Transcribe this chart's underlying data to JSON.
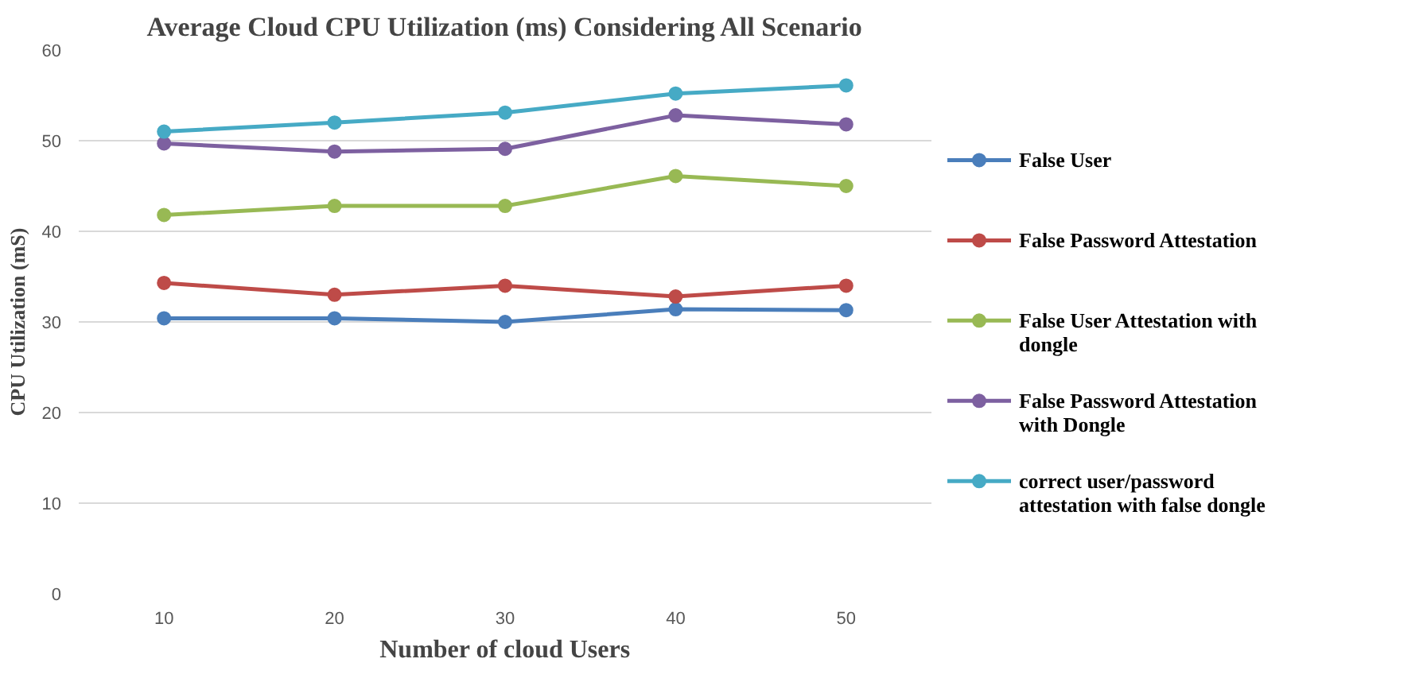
{
  "chart_data": {
    "type": "line",
    "title": "Average Cloud CPU Utilization (ms) Considering All Scenario",
    "xlabel": "Number of cloud Users",
    "ylabel": "CPU Utilization (mS)",
    "categories": [
      "10",
      "20",
      "30",
      "40",
      "50"
    ],
    "series": [
      {
        "name": "False User",
        "color": "#4a7ebb",
        "values": [
          30.4,
          30.4,
          30.0,
          31.4,
          31.3
        ]
      },
      {
        "name": "False Password Attestation",
        "color": "#be4b48",
        "values": [
          34.3,
          33.0,
          34.0,
          32.8,
          34.0
        ]
      },
      {
        "name": "False User Attestation with dongle",
        "color": "#98b954",
        "values": [
          41.8,
          42.8,
          42.8,
          46.1,
          45.0
        ]
      },
      {
        "name": "False Password Attestation with Dongle",
        "color": "#7d60a0",
        "values": [
          49.7,
          48.8,
          49.1,
          52.8,
          51.8
        ]
      },
      {
        "name": "correct user/password attestation with false dongle",
        "color": "#46aac5",
        "values": [
          51.0,
          52.0,
          53.1,
          55.2,
          56.1
        ]
      }
    ],
    "ylim": [
      0,
      60
    ],
    "yticks": [
      0,
      10,
      20,
      30,
      40,
      50,
      60
    ],
    "grid": "y",
    "legend": "right",
    "marker": "circle",
    "line_style": "solid"
  }
}
